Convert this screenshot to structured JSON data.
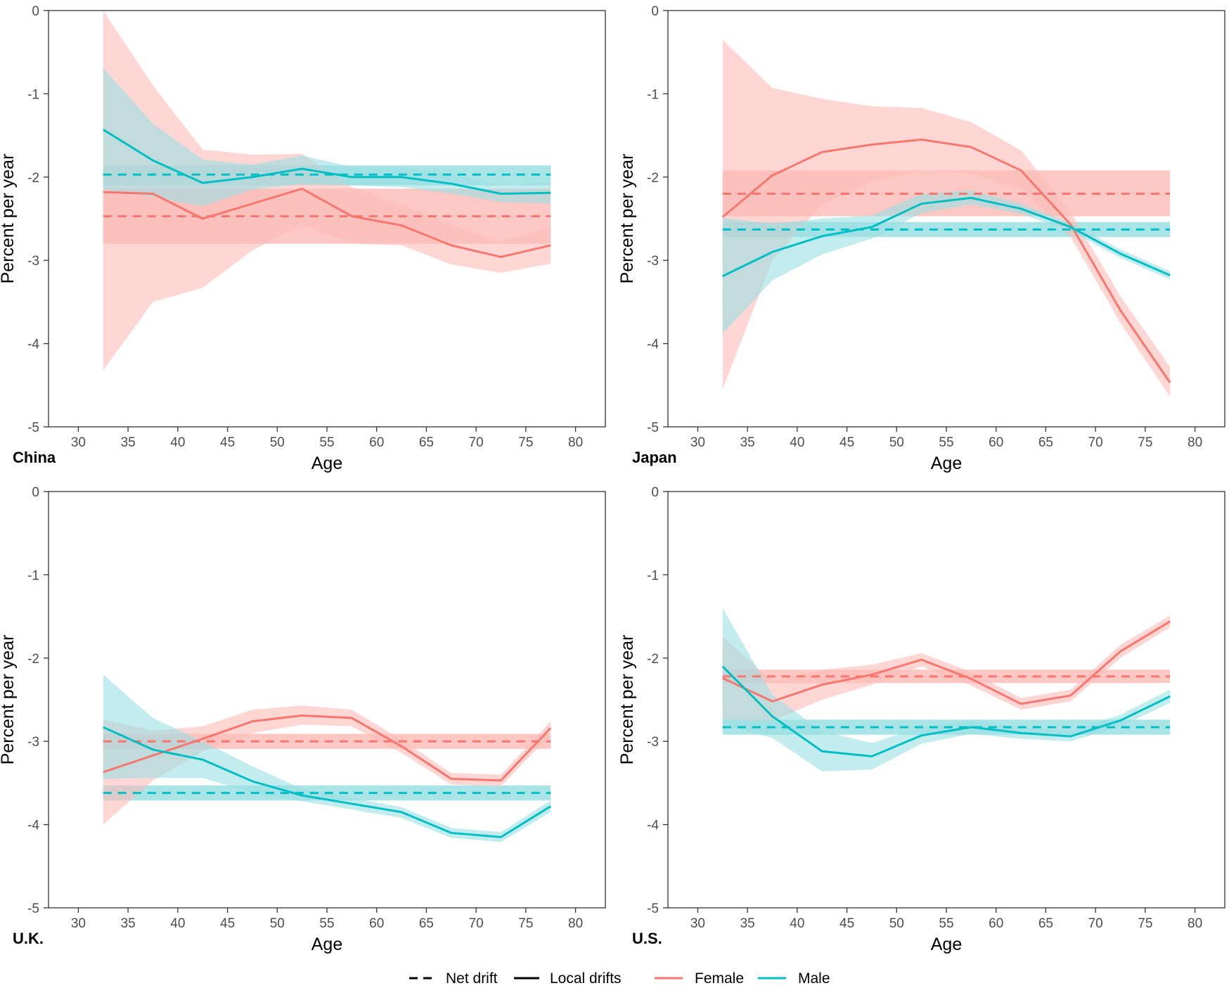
{
  "chart_data": [
    {
      "type": "line",
      "panel_label": "China",
      "xlabel": "Age",
      "ylabel": "Percent per year",
      "xlim": [
        27,
        83
      ],
      "ylim": [
        -5,
        0
      ],
      "xticks": [
        30,
        35,
        40,
        45,
        50,
        55,
        60,
        65,
        70,
        75,
        80
      ],
      "yticks": [
        0,
        -1,
        -2,
        -3,
        -4,
        -5
      ],
      "x": [
        32.5,
        37.5,
        42.5,
        47.5,
        52.5,
        57.5,
        62.5,
        67.5,
        72.5,
        77.5
      ],
      "series": [
        {
          "name": "Female",
          "local_drift": [
            -2.18,
            -2.2,
            -2.5,
            -2.32,
            -2.14,
            -2.47,
            -2.58,
            -2.82,
            -2.96,
            -2.82
          ],
          "ci_lower": [
            -4.32,
            -3.5,
            -3.33,
            -2.88,
            -2.57,
            -2.8,
            -2.82,
            -3.05,
            -3.15,
            -3.04
          ],
          "ci_upper": [
            0.0,
            -0.9,
            -1.67,
            -1.73,
            -1.72,
            -2.12,
            -2.33,
            -2.57,
            -2.78,
            -2.6
          ],
          "net_drift": -2.47,
          "net_lower": -2.8,
          "net_upper": -2.14
        },
        {
          "name": "Male",
          "local_drift": [
            -1.43,
            -1.8,
            -2.07,
            -2.0,
            -1.9,
            -2.0,
            -2.0,
            -2.08,
            -2.2,
            -2.19
          ],
          "ci_lower": [
            -2.15,
            -2.24,
            -2.35,
            -2.15,
            -2.08,
            -2.1,
            -2.12,
            -2.2,
            -2.3,
            -2.32
          ],
          "ci_upper": [
            -0.69,
            -1.36,
            -1.79,
            -1.85,
            -1.74,
            -1.88,
            -1.88,
            -1.96,
            -2.1,
            -2.06
          ],
          "net_drift": -1.97,
          "net_lower": -2.1,
          "net_upper": -1.86
        }
      ]
    },
    {
      "type": "line",
      "panel_label": "Japan",
      "xlabel": "Age",
      "ylabel": "Percent per year",
      "xlim": [
        27,
        83
      ],
      "ylim": [
        -5,
        0
      ],
      "xticks": [
        30,
        35,
        40,
        45,
        50,
        55,
        60,
        65,
        70,
        75,
        80
      ],
      "yticks": [
        0,
        -1,
        -2,
        -3,
        -4,
        -5
      ],
      "x": [
        32.5,
        37.5,
        42.5,
        47.5,
        52.5,
        57.5,
        62.5,
        67.5,
        72.5,
        77.5
      ],
      "series": [
        {
          "name": "Female",
          "local_drift": [
            -2.48,
            -1.98,
            -1.7,
            -1.61,
            -1.55,
            -1.64,
            -1.92,
            -2.57,
            -3.6,
            -4.47
          ],
          "ci_lower": [
            -4.55,
            -3.0,
            -2.33,
            -2.06,
            -1.92,
            -1.95,
            -2.15,
            -2.72,
            -3.75,
            -4.64
          ],
          "ci_upper": [
            -0.35,
            -0.93,
            -1.06,
            -1.15,
            -1.17,
            -1.34,
            -1.68,
            -2.42,
            -3.43,
            -4.28
          ],
          "net_drift": -2.2,
          "net_lower": -2.47,
          "net_upper": -1.92
        },
        {
          "name": "Male",
          "local_drift": [
            -3.19,
            -2.9,
            -2.71,
            -2.6,
            -2.32,
            -2.25,
            -2.38,
            -2.6,
            -2.92,
            -3.18
          ],
          "ci_lower": [
            -3.88,
            -3.24,
            -2.93,
            -2.74,
            -2.43,
            -2.33,
            -2.44,
            -2.65,
            -2.97,
            -3.23
          ],
          "ci_upper": [
            -2.49,
            -2.56,
            -2.5,
            -2.46,
            -2.2,
            -2.16,
            -2.32,
            -2.55,
            -2.87,
            -3.13
          ],
          "net_drift": -2.63,
          "net_lower": -2.72,
          "net_upper": -2.54
        }
      ]
    },
    {
      "type": "line",
      "panel_label": "U.K.",
      "xlabel": "Age",
      "ylabel": "Percent per year",
      "xlim": [
        27,
        83
      ],
      "ylim": [
        -5,
        0
      ],
      "xticks": [
        30,
        35,
        40,
        45,
        50,
        55,
        60,
        65,
        70,
        75,
        80
      ],
      "yticks": [
        0,
        -1,
        -2,
        -3,
        -4,
        -5
      ],
      "x": [
        32.5,
        37.5,
        42.5,
        47.5,
        52.5,
        57.5,
        62.5,
        67.5,
        72.5,
        77.5
      ],
      "series": [
        {
          "name": "Female",
          "local_drift": [
            -3.37,
            -3.17,
            -2.97,
            -2.76,
            -2.69,
            -2.72,
            -3.06,
            -3.45,
            -3.47,
            -2.84
          ],
          "ci_lower": [
            -4.0,
            -3.47,
            -3.12,
            -2.9,
            -2.8,
            -2.82,
            -3.14,
            -3.52,
            -3.54,
            -2.92
          ],
          "ci_upper": [
            -2.74,
            -2.87,
            -2.82,
            -2.62,
            -2.57,
            -2.62,
            -2.98,
            -3.38,
            -3.4,
            -2.76
          ],
          "net_drift": -3.0,
          "net_lower": -3.09,
          "net_upper": -2.91
        },
        {
          "name": "Male",
          "local_drift": [
            -2.83,
            -3.1,
            -3.22,
            -3.48,
            -3.65,
            -3.75,
            -3.85,
            -4.1,
            -4.15,
            -3.78
          ],
          "ci_lower": [
            -3.45,
            -3.44,
            -3.44,
            -3.62,
            -3.72,
            -3.82,
            -3.92,
            -4.16,
            -4.21,
            -3.85
          ],
          "ci_upper": [
            -2.2,
            -2.72,
            -3.0,
            -3.3,
            -3.57,
            -3.68,
            -3.79,
            -4.04,
            -4.09,
            -3.71
          ],
          "net_drift": -3.62,
          "net_lower": -3.71,
          "net_upper": -3.53
        }
      ]
    },
    {
      "type": "line",
      "panel_label": "U.S.",
      "xlabel": "Age",
      "ylabel": "Percent per year",
      "xlim": [
        27,
        83
      ],
      "ylim": [
        -5,
        0
      ],
      "xticks": [
        30,
        35,
        40,
        45,
        50,
        55,
        60,
        65,
        70,
        75,
        80
      ],
      "yticks": [
        0,
        -1,
        -2,
        -3,
        -4,
        -5
      ],
      "x": [
        32.5,
        37.5,
        42.5,
        47.5,
        52.5,
        57.5,
        62.5,
        67.5,
        72.5,
        77.5
      ],
      "series": [
        {
          "name": "Female",
          "local_drift": [
            -2.24,
            -2.52,
            -2.32,
            -2.2,
            -2.02,
            -2.25,
            -2.55,
            -2.45,
            -1.92,
            -1.56
          ],
          "ci_lower": [
            -2.74,
            -2.76,
            -2.5,
            -2.32,
            -2.1,
            -2.33,
            -2.62,
            -2.52,
            -2.0,
            -1.63
          ],
          "ci_upper": [
            -1.74,
            -2.28,
            -2.14,
            -2.08,
            -1.94,
            -2.17,
            -2.48,
            -2.38,
            -1.84,
            -1.49
          ],
          "net_drift": -2.22,
          "net_lower": -2.3,
          "net_upper": -2.14
        },
        {
          "name": "Male",
          "local_drift": [
            -2.1,
            -2.7,
            -3.12,
            -3.18,
            -2.93,
            -2.83,
            -2.9,
            -2.94,
            -2.75,
            -2.46
          ],
          "ci_lower": [
            -2.8,
            -2.96,
            -3.36,
            -3.34,
            -3.03,
            -2.91,
            -2.97,
            -3.0,
            -2.82,
            -2.54
          ],
          "ci_upper": [
            -1.4,
            -2.44,
            -2.88,
            -3.02,
            -2.83,
            -2.75,
            -2.83,
            -2.88,
            -2.68,
            -2.38
          ],
          "net_drift": -2.83,
          "net_lower": -2.92,
          "net_upper": -2.74
        }
      ]
    }
  ],
  "legend": {
    "net_drift_label": "Net drift",
    "local_drifts_label": "Local drifts",
    "female_label": "Female",
    "male_label": "Male"
  },
  "colors": {
    "female": "#F8766D",
    "male": "#00BFC4",
    "female_band": "#FDBDB9",
    "male_band": "#9ADFE2"
  }
}
